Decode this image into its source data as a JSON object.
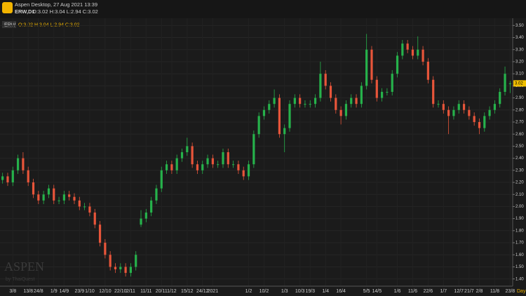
{
  "header": {
    "title": "Aspen Desktop, 27 Aug 2021 13:39",
    "symbol": "ERW,D1",
    "ohlc": "O:3.02 H:3.04 L:2.94 C:3.02"
  },
  "legend": {
    "tag": "ERW",
    "ohlc": "O:3.02 H:3.04 L:2.94 C:3.02"
  },
  "watermark": {
    "brand": "ASPEN",
    "by": "by ThaiQuest"
  },
  "period": "Day",
  "chart_data": {
    "type": "candlestick",
    "up_color": "#26b24b",
    "down_color": "#e8553a",
    "grid": true,
    "categories": [
      null,
      null,
      "3/8",
      null,
      null,
      "13/8",
      null,
      "24/8",
      null,
      null,
      "1/9",
      null,
      "14/9",
      null,
      null,
      "23/9",
      null,
      "1/10",
      null,
      null,
      "12/10",
      null,
      null,
      "22/10",
      null,
      "2/11",
      null,
      null,
      "11/11",
      null,
      null,
      "20/11",
      null,
      "1/12",
      null,
      null,
      "15/12",
      null,
      null,
      "24/12",
      null,
      "2021",
      null,
      null,
      null,
      null,
      null,
      null,
      "1/2",
      null,
      null,
      "10/2",
      null,
      null,
      null,
      "1/3",
      null,
      null,
      "10/3",
      null,
      "19/3",
      null,
      null,
      "1/4",
      null,
      null,
      "16/4",
      null,
      null,
      null,
      null,
      "5/5",
      null,
      "14/5",
      null,
      null,
      null,
      "1/6",
      null,
      null,
      "11/6",
      null,
      null,
      "22/6",
      null,
      null,
      "1/7",
      null,
      null,
      "12/7",
      null,
      "21/7",
      null,
      "2/8",
      null,
      null,
      "11/8",
      null,
      null,
      "23/8"
    ],
    "open": [
      2.22,
      2.25,
      2.2,
      2.3,
      2.4,
      2.3,
      2.2,
      2.1,
      2.05,
      2.1,
      2.15,
      2.05,
      2.05,
      2.1,
      2.08,
      2.05,
      2.0,
      2.0,
      1.95,
      1.85,
      1.7,
      1.6,
      1.5,
      1.48,
      1.5,
      1.45,
      1.5,
      1.85,
      1.9,
      1.95,
      2.05,
      2.15,
      2.3,
      2.35,
      2.3,
      2.4,
      2.45,
      2.5,
      2.35,
      2.3,
      2.35,
      2.4,
      2.35,
      2.35,
      2.45,
      2.35,
      2.35,
      2.3,
      2.25,
      2.35,
      2.6,
      2.75,
      2.8,
      2.85,
      2.9,
      2.6,
      2.65,
      2.85,
      2.9,
      2.85,
      2.85,
      2.85,
      2.9,
      3.1,
      3.0,
      2.9,
      2.8,
      2.75,
      2.85,
      2.9,
      2.85,
      3.0,
      3.3,
      3.05,
      2.9,
      2.95,
      2.95,
      3.1,
      3.25,
      3.35,
      3.3,
      3.25,
      3.3,
      3.2,
      3.05,
      2.85,
      2.85,
      2.8,
      2.75,
      2.8,
      2.85,
      2.8,
      2.75,
      2.7,
      2.65,
      2.75,
      2.8,
      2.85,
      2.95,
      3.02
    ],
    "high": [
      2.28,
      2.28,
      2.33,
      2.43,
      2.45,
      2.33,
      2.23,
      2.13,
      2.13,
      2.18,
      2.18,
      2.08,
      2.13,
      2.13,
      2.11,
      2.08,
      2.03,
      2.03,
      1.98,
      1.88,
      1.73,
      1.63,
      1.53,
      1.53,
      1.53,
      1.53,
      1.63,
      1.97,
      1.98,
      2.08,
      2.18,
      2.33,
      2.38,
      2.38,
      2.43,
      2.48,
      2.57,
      2.53,
      2.38,
      2.38,
      2.43,
      2.43,
      2.38,
      2.48,
      2.48,
      2.38,
      2.38,
      2.33,
      2.38,
      2.63,
      2.78,
      2.83,
      2.88,
      2.97,
      2.93,
      2.68,
      2.88,
      2.93,
      2.93,
      2.88,
      2.88,
      2.93,
      3.2,
      3.13,
      3.03,
      2.93,
      2.83,
      2.88,
      2.93,
      2.93,
      3.03,
      3.43,
      3.33,
      3.08,
      2.98,
      2.98,
      3.13,
      3.28,
      3.38,
      3.38,
      3.33,
      3.41,
      3.33,
      3.23,
      3.08,
      2.88,
      2.88,
      2.83,
      2.83,
      2.88,
      2.88,
      2.83,
      2.78,
      2.73,
      2.78,
      2.83,
      2.88,
      2.98,
      3.16,
      3.04
    ],
    "low": [
      2.19,
      2.17,
      2.17,
      2.27,
      2.27,
      2.17,
      2.07,
      2.02,
      2.02,
      2.07,
      2.02,
      2.02,
      2.02,
      2.05,
      2.02,
      1.97,
      1.97,
      1.92,
      1.82,
      1.67,
      1.57,
      1.47,
      1.45,
      1.45,
      1.42,
      1.42,
      1.47,
      1.83,
      1.87,
      1.92,
      2.02,
      2.12,
      2.27,
      2.27,
      2.27,
      2.37,
      2.42,
      2.32,
      2.27,
      2.27,
      2.32,
      2.32,
      2.32,
      2.32,
      2.32,
      2.32,
      2.27,
      2.22,
      2.22,
      2.32,
      2.57,
      2.72,
      2.77,
      2.82,
      2.57,
      2.45,
      2.62,
      2.82,
      2.82,
      2.82,
      2.82,
      2.82,
      2.87,
      2.97,
      2.87,
      2.77,
      2.68,
      2.72,
      2.82,
      2.82,
      2.82,
      2.97,
      3.02,
      2.87,
      2.87,
      2.92,
      2.92,
      3.07,
      3.22,
      3.27,
      3.22,
      3.22,
      3.17,
      3.02,
      2.82,
      2.82,
      2.77,
      2.6,
      2.72,
      2.77,
      2.77,
      2.72,
      2.67,
      2.6,
      2.62,
      2.72,
      2.77,
      2.82,
      2.92,
      2.94
    ],
    "close": [
      2.25,
      2.2,
      2.3,
      2.4,
      2.3,
      2.2,
      2.1,
      2.05,
      2.1,
      2.15,
      2.05,
      2.05,
      2.1,
      2.08,
      2.05,
      2.0,
      2.0,
      1.95,
      1.85,
      1.7,
      1.6,
      1.5,
      1.48,
      1.5,
      1.45,
      1.5,
      1.6,
      1.9,
      1.95,
      2.05,
      2.15,
      2.3,
      2.35,
      2.3,
      2.4,
      2.45,
      2.5,
      2.35,
      2.3,
      2.35,
      2.4,
      2.35,
      2.35,
      2.45,
      2.35,
      2.35,
      2.3,
      2.25,
      2.35,
      2.6,
      2.75,
      2.8,
      2.85,
      2.9,
      2.6,
      2.65,
      2.85,
      2.9,
      2.85,
      2.85,
      2.85,
      2.9,
      3.1,
      3.0,
      2.9,
      2.8,
      2.75,
      2.85,
      2.9,
      2.85,
      3.0,
      3.3,
      3.05,
      2.9,
      2.95,
      2.95,
      3.1,
      3.25,
      3.35,
      3.3,
      3.25,
      3.3,
      3.2,
      3.05,
      2.85,
      2.85,
      2.8,
      2.75,
      2.8,
      2.85,
      2.8,
      2.75,
      2.7,
      2.65,
      2.75,
      2.8,
      2.85,
      2.95,
      3.1,
      3.02
    ],
    "ylim": [
      1.34,
      3.56
    ],
    "yticks": [
      {
        "value": 1.4,
        "label": "1.40"
      },
      {
        "value": 1.5,
        "label": "1.50"
      },
      {
        "value": 1.6,
        "label": "1.60"
      },
      {
        "value": 1.7,
        "label": "1.70"
      },
      {
        "value": 1.8,
        "label": "1.80"
      },
      {
        "value": 1.9,
        "label": "1.90"
      },
      {
        "value": 2.0,
        "label": "2.00"
      },
      {
        "value": 2.1,
        "label": "2.10"
      },
      {
        "value": 2.2,
        "label": "2.20"
      },
      {
        "value": 2.3,
        "label": "2.30"
      },
      {
        "value": 2.4,
        "label": "2.40"
      },
      {
        "value": 2.5,
        "label": "2.50"
      },
      {
        "value": 2.6,
        "label": "2.60"
      },
      {
        "value": 2.7,
        "label": "2.70"
      },
      {
        "value": 2.8,
        "label": "2.80"
      },
      {
        "value": 2.9,
        "label": "2.90"
      },
      {
        "value": 3.0,
        "label": "3.00"
      },
      {
        "value": 3.1,
        "label": "3.10"
      },
      {
        "value": 3.2,
        "label": "3.20"
      },
      {
        "value": 3.3,
        "label": "3.30"
      },
      {
        "value": 3.4,
        "label": "3.40"
      },
      {
        "value": 3.5,
        "label": "3.50"
      }
    ]
  }
}
